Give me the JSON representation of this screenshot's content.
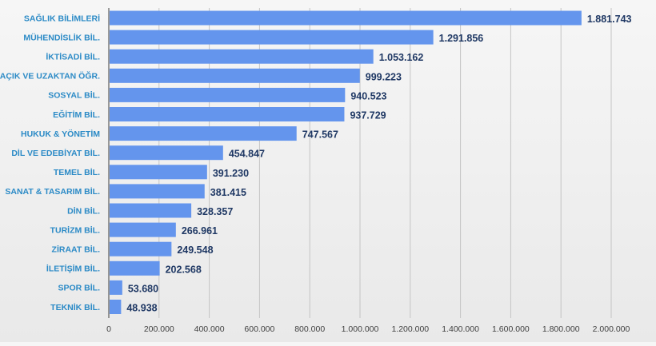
{
  "chart_data": {
    "type": "bar",
    "orientation": "horizontal",
    "title": "",
    "xlabel": "",
    "ylabel": "",
    "xlim": [
      0,
      2000000
    ],
    "grid": true,
    "legend": "none",
    "categories": [
      "SAĞLIK BİLİMLERİ",
      "MÜHENDİSLİK BİL.",
      "İKTİSADİ BİL.",
      "AÇIK VE UZAKTAN ÖĞR.",
      "SOSYAL BİL.",
      "EĞİTİM BİL.",
      "HUKUK & YÖNETİM",
      "DİL VE EDEBİYAT BİL.",
      "TEMEL BİL.",
      "SANAT & TASARIM BİL.",
      "DİN BİL.",
      "TURİZM BİL.",
      "ZİRAAT BİL.",
      "İLETİŞİM BİL.",
      "SPOR BİL.",
      "TEKNİK BİL."
    ],
    "values": [
      1881743,
      1291856,
      1053162,
      999223,
      940523,
      937729,
      747567,
      454847,
      391230,
      381415,
      328357,
      266961,
      249548,
      202568,
      53680,
      48938
    ],
    "value_labels": [
      "1.881.743",
      "1.291.856",
      "1.053.162",
      "999.223",
      "940.523",
      "937.729",
      "747.567",
      "454.847",
      "391.230",
      "381.415",
      "328.357",
      "266.961",
      "249.548",
      "202.568",
      "53.680",
      "48.938"
    ],
    "x_ticks": [
      0,
      200000,
      400000,
      600000,
      800000,
      1000000,
      1200000,
      1400000,
      1600000,
      1800000,
      2000000
    ],
    "x_tick_labels": [
      "0",
      "200.000",
      "400.000",
      "600.000",
      "800.000",
      "1.000.000",
      "1.200.000",
      "1.400.000",
      "1.600.000",
      "1.800.000",
      "2.000.000"
    ]
  },
  "colors": {
    "bar": "#6495ed",
    "category_label": "#2b8ac6",
    "value_label": "#1f3864",
    "tick_label": "#404040",
    "grid": "#c4c4c4",
    "axis": "#404040"
  }
}
